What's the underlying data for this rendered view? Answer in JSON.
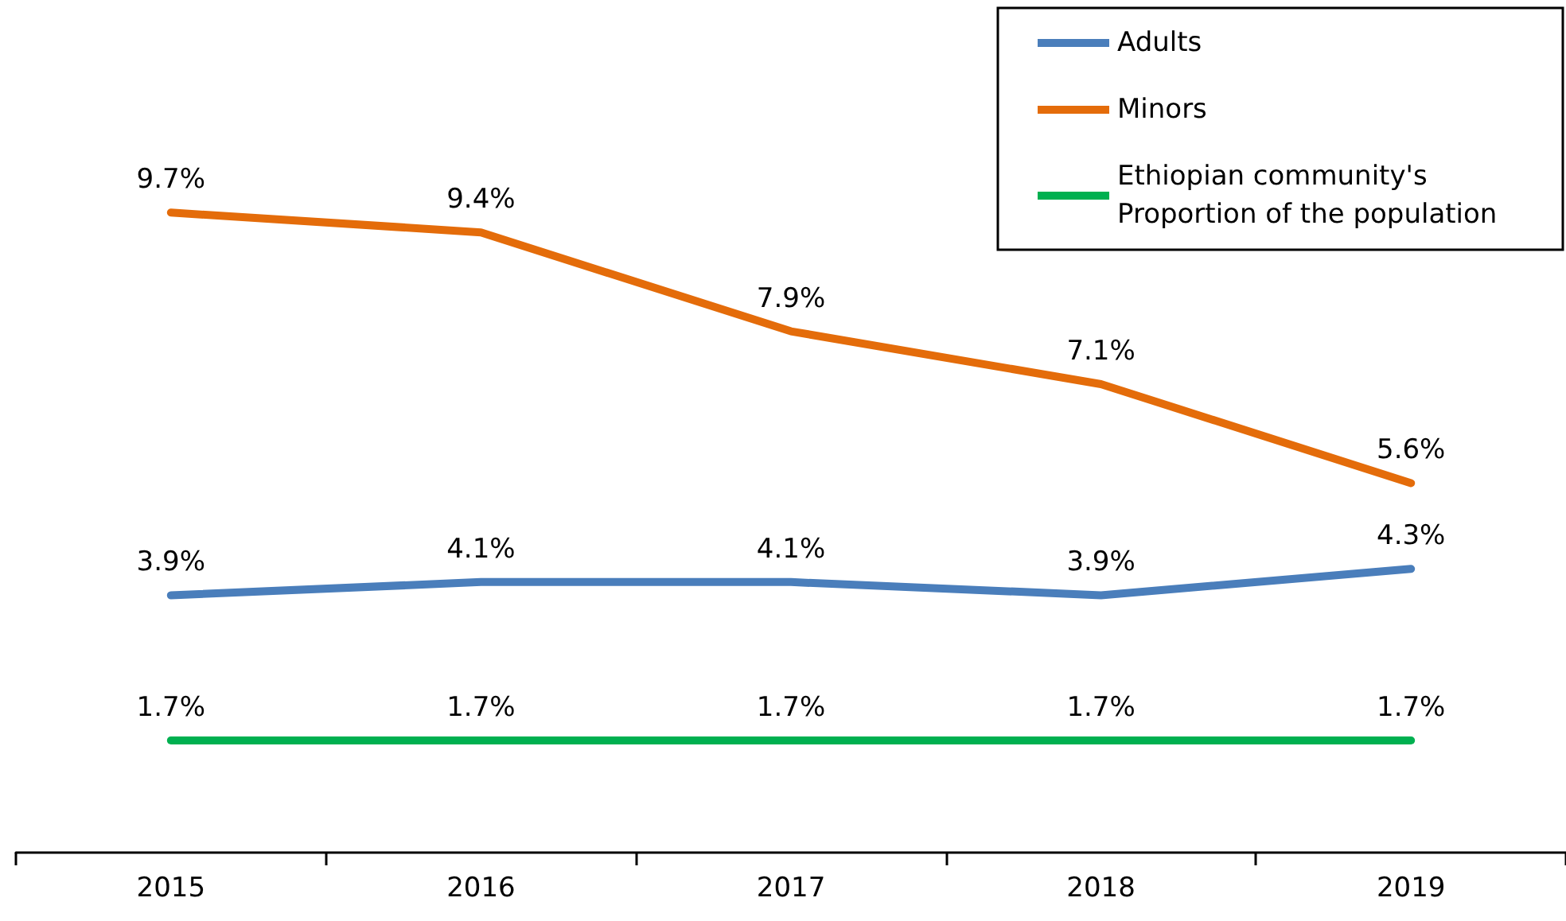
{
  "chart_data": {
    "type": "line",
    "categories": [
      "2015",
      "2016",
      "2017",
      "2018",
      "2019"
    ],
    "series": [
      {
        "name": "Adults",
        "color": "#4a7ebb",
        "values": [
          3.9,
          4.1,
          4.1,
          3.9,
          4.3
        ],
        "value_labels": [
          "3.9%",
          "4.1%",
          "4.1%",
          "3.9%",
          "4.3%"
        ]
      },
      {
        "name": "Minors",
        "color": "#e46c0a",
        "values": [
          9.7,
          9.4,
          7.9,
          7.1,
          5.6
        ],
        "value_labels": [
          "9.7%",
          "9.4%",
          "7.9%",
          "7.1%",
          "5.6%"
        ]
      },
      {
        "name": "Ethiopian community's Proportion of the population",
        "color": "#00b050",
        "values": [
          1.7,
          1.7,
          1.7,
          1.7,
          1.7
        ],
        "value_labels": [
          "1.7%",
          "1.7%",
          "1.7%",
          "1.7%",
          "1.7%"
        ]
      }
    ],
    "legend": "top right",
    "marker": "none",
    "line_style": "solid",
    "grid": false,
    "tick_labels": "x"
  }
}
